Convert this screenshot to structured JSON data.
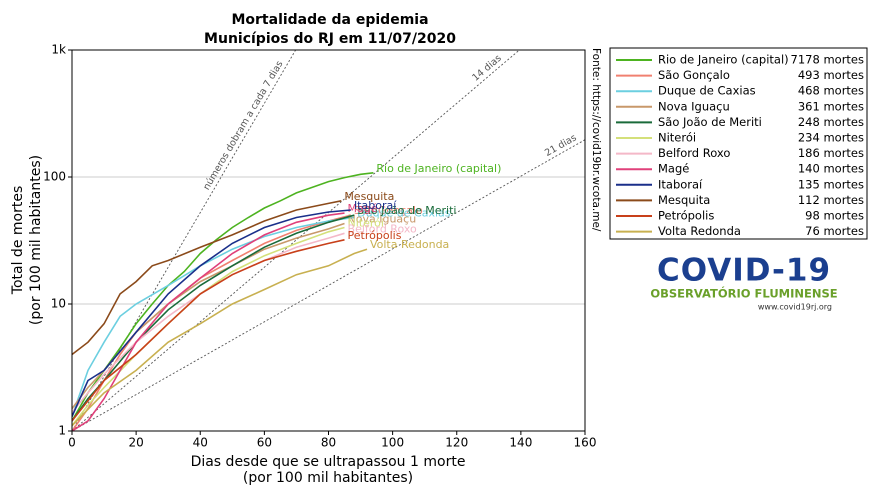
{
  "chart_data": {
    "type": "line",
    "title": "Mortalidade da epidemia",
    "subtitle": "Municípios do RJ em 11/07/2020",
    "xlabel": [
      "Dias desde que se ultrapassou 1 morte",
      "(por 100 mil habitantes)"
    ],
    "ylabel": [
      "Total de mortes",
      "(por 100 mil habitantes)"
    ],
    "source": "Fonte: https://covid19br.wcota.me/",
    "xlim": [
      0,
      160
    ],
    "xticks": [
      0,
      20,
      40,
      60,
      80,
      100,
      120,
      140,
      160
    ],
    "ylim": [
      1,
      1000
    ],
    "yscale": "log",
    "yticks": [
      1,
      10,
      100,
      {
        "value": 1000,
        "label": "1k"
      }
    ],
    "grid": true,
    "legend": "outside-upper-right",
    "reference_lines": [
      {
        "label": "números dobram a cada 7 dias",
        "doubling_days": 7
      },
      {
        "label": "14 dias",
        "doubling_days": 14
      },
      {
        "label": "21 dias",
        "doubling_days": 21
      }
    ],
    "series": [
      {
        "name": "Rio de Janeiro (capital)",
        "total_label": "7178 mortes",
        "color": "#4db320",
        "x": [
          0,
          5,
          10,
          15,
          20,
          25,
          30,
          35,
          40,
          45,
          50,
          55,
          60,
          65,
          70,
          75,
          80,
          85,
          90,
          94
        ],
        "values": [
          1.2,
          2,
          3,
          4.5,
          7,
          10,
          14,
          18,
          25,
          32,
          40,
          48,
          57,
          65,
          75,
          83,
          92,
          99,
          105,
          108
        ]
      },
      {
        "name": "São Gonçalo",
        "total_label": "493 mortes",
        "color": "#f08070",
        "x": [
          0,
          5,
          10,
          15,
          20,
          30,
          40,
          50,
          60,
          70,
          80,
          87
        ],
        "values": [
          1,
          1.5,
          2.5,
          4,
          6,
          10,
          16,
          22,
          30,
          38,
          45,
          50
        ]
      },
      {
        "name": "Duque de Caxias",
        "total_label": "468 mortes",
        "color": "#6ccfe0",
        "x": [
          0,
          5,
          10,
          15,
          20,
          30,
          40,
          50,
          60,
          70,
          80,
          88
        ],
        "values": [
          1.3,
          3,
          5,
          8,
          10,
          14,
          20,
          27,
          34,
          40,
          45,
          48
        ]
      },
      {
        "name": "Nova Iguaçu",
        "total_label": "361 mortes",
        "color": "#c8986a",
        "x": [
          0,
          5,
          10,
          20,
          30,
          40,
          50,
          60,
          70,
          80,
          85
        ],
        "values": [
          1.5,
          2.2,
          3,
          6,
          10,
          15,
          20,
          27,
          33,
          39,
          43
        ]
      },
      {
        "name": "São João de Meriti",
        "total_label": "248 mortes",
        "color": "#1a6b3a",
        "x": [
          0,
          5,
          10,
          20,
          30,
          40,
          50,
          60,
          70,
          80,
          88
        ],
        "values": [
          1.2,
          1.8,
          2.5,
          5,
          9,
          14,
          20,
          28,
          36,
          44,
          50
        ]
      },
      {
        "name": "Niterói",
        "total_label": "234 mortes",
        "color": "#d4e07a",
        "x": [
          0,
          5,
          10,
          20,
          30,
          40,
          50,
          60,
          70,
          80,
          85
        ],
        "values": [
          1.1,
          1.6,
          2.2,
          4,
          7,
          12,
          18,
          24,
          30,
          37,
          40
        ]
      },
      {
        "name": "Belford Roxo",
        "total_label": "186 mortes",
        "color": "#f4b8c8",
        "x": [
          0,
          5,
          10,
          20,
          30,
          40,
          50,
          60,
          70,
          80,
          85
        ],
        "values": [
          1.4,
          2,
          2.8,
          5,
          8,
          12,
          17,
          22,
          28,
          33,
          36
        ]
      },
      {
        "name": "Magé",
        "total_label": "140 mortes",
        "color": "#e0407a",
        "x": [
          0,
          5,
          10,
          15,
          20,
          30,
          40,
          50,
          60,
          70,
          80,
          85
        ],
        "values": [
          1,
          1.2,
          1.8,
          3,
          5,
          10,
          16,
          25,
          35,
          44,
          50,
          52
        ]
      },
      {
        "name": "Itaboraí",
        "total_label": "135 mortes",
        "color": "#1a2f8a",
        "x": [
          0,
          5,
          10,
          20,
          30,
          40,
          50,
          60,
          70,
          80,
          87
        ],
        "values": [
          1.3,
          2.5,
          3,
          6,
          12,
          20,
          30,
          40,
          48,
          53,
          55
        ]
      },
      {
        "name": "Mesquita",
        "total_label": "112 mortes",
        "color": "#8b4a1a",
        "x": [
          0,
          5,
          10,
          15,
          20,
          25,
          30,
          40,
          50,
          60,
          70,
          80,
          84
        ],
        "values": [
          4,
          5,
          7,
          12,
          15,
          20,
          22,
          28,
          35,
          45,
          55,
          62,
          65
        ]
      },
      {
        "name": "Petrópolis",
        "total_label": "98 mortes",
        "color": "#c8401a",
        "x": [
          0,
          10,
          20,
          30,
          40,
          50,
          60,
          70,
          80,
          85
        ],
        "values": [
          1.2,
          2.5,
          4,
          7,
          12,
          17,
          22,
          26,
          30,
          32
        ]
      },
      {
        "name": "Volta Redonda",
        "total_label": "76 mortes",
        "color": "#c8b050",
        "x": [
          0,
          10,
          20,
          30,
          40,
          50,
          60,
          70,
          80,
          88,
          92
        ],
        "values": [
          1.1,
          2,
          3,
          5,
          7,
          10,
          13,
          17,
          20,
          25,
          27
        ]
      }
    ]
  },
  "logo": {
    "title": "COVID-19",
    "subtitle": "OBSERVATÓRIO FLUMINENSE",
    "url": "www.covid19rj.org"
  }
}
